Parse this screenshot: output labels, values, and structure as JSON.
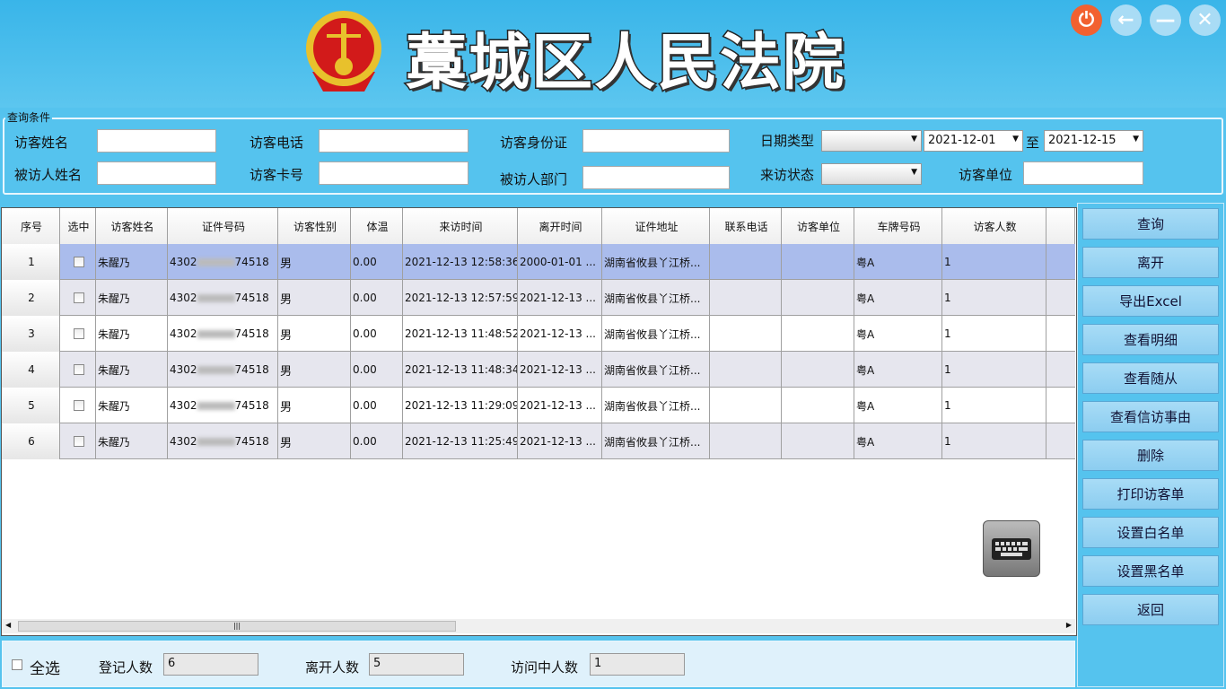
{
  "header": {
    "title": "藁城区人民法院",
    "emblem": "court-emblem",
    "window_buttons": [
      "power-icon",
      "back-arrow-icon",
      "minimize-icon",
      "close-icon"
    ],
    "accent": "#39b5e9"
  },
  "query": {
    "legend": "查询条件",
    "visitor_name": "访客姓名",
    "visitor_phone": "访客电话",
    "visitor_id": "访客身份证",
    "date_type": "日期类型",
    "date_type_value": "",
    "date_from": "2021-12-01",
    "to": "至",
    "date_to": "2021-12-15",
    "host_name": "被访人姓名",
    "card_no": "访客卡号",
    "host_dept": "被访人部门",
    "status": "来访状态",
    "status_value": "",
    "visitor_unit": "访客单位"
  },
  "table": {
    "columns": [
      "序号",
      "选中",
      "访客姓名",
      "证件号码",
      "访客性别",
      "体温",
      "来访时间",
      "离开时间",
      "证件地址",
      "联系电话",
      "访客单位",
      "车牌号码",
      "访客人数"
    ],
    "rows": [
      {
        "no": "1",
        "name": "朱醒乃",
        "id_prefix": "4302",
        "id_suffix": "74518",
        "gender": "男",
        "temp": "0.00",
        "in": "2021-12-13 12:58:36",
        "out": "2000-01-01 ...",
        "addr": "湖南省攸县丫江桥...",
        "phone": "",
        "unit": "",
        "plate": "粤A",
        "count": "1"
      },
      {
        "no": "2",
        "name": "朱醒乃",
        "id_prefix": "4302",
        "id_suffix": "74518",
        "gender": "男",
        "temp": "0.00",
        "in": "2021-12-13 12:57:59",
        "out": "2021-12-13 ...",
        "addr": "湖南省攸县丫江桥...",
        "phone": "",
        "unit": "",
        "plate": "粤A",
        "count": "1"
      },
      {
        "no": "3",
        "name": "朱醒乃",
        "id_prefix": "4302",
        "id_suffix": "74518",
        "gender": "男",
        "temp": "0.00",
        "in": "2021-12-13 11:48:52",
        "out": "2021-12-13 ...",
        "addr": "湖南省攸县丫江桥...",
        "phone": "",
        "unit": "",
        "plate": "粤A",
        "count": "1"
      },
      {
        "no": "4",
        "name": "朱醒乃",
        "id_prefix": "4302",
        "id_suffix": "74518",
        "gender": "男",
        "temp": "0.00",
        "in": "2021-12-13 11:48:34",
        "out": "2021-12-13 ...",
        "addr": "湖南省攸县丫江桥...",
        "phone": "",
        "unit": "",
        "plate": "粤A",
        "count": "1"
      },
      {
        "no": "5",
        "name": "朱醒乃",
        "id_prefix": "4302",
        "id_suffix": "74518",
        "gender": "男",
        "temp": "0.00",
        "in": "2021-12-13 11:29:09",
        "out": "2021-12-13 ...",
        "addr": "湖南省攸县丫江桥...",
        "phone": "",
        "unit": "",
        "plate": "粤A",
        "count": "1"
      },
      {
        "no": "6",
        "name": "朱醒乃",
        "id_prefix": "4302",
        "id_suffix": "74518",
        "gender": "男",
        "temp": "0.00",
        "in": "2021-12-13 11:25:49",
        "out": "2021-12-13 ...",
        "addr": "湖南省攸县丫江桥...",
        "phone": "",
        "unit": "",
        "plate": "粤A",
        "count": "1"
      }
    ],
    "selected_row_color": "#aabcec"
  },
  "actions": [
    "查询",
    "离开",
    "导出Excel",
    "查看明细",
    "查看随从",
    "查看信访事由",
    "删除",
    "打印访客单",
    "设置白名单",
    "设置黑名单",
    "返回"
  ],
  "footer": {
    "select_all": "全选",
    "registered_label": "登记人数",
    "registered": "6",
    "left_label": "离开人数",
    "left": "5",
    "visiting_label": "访问中人数",
    "visiting": "1"
  }
}
